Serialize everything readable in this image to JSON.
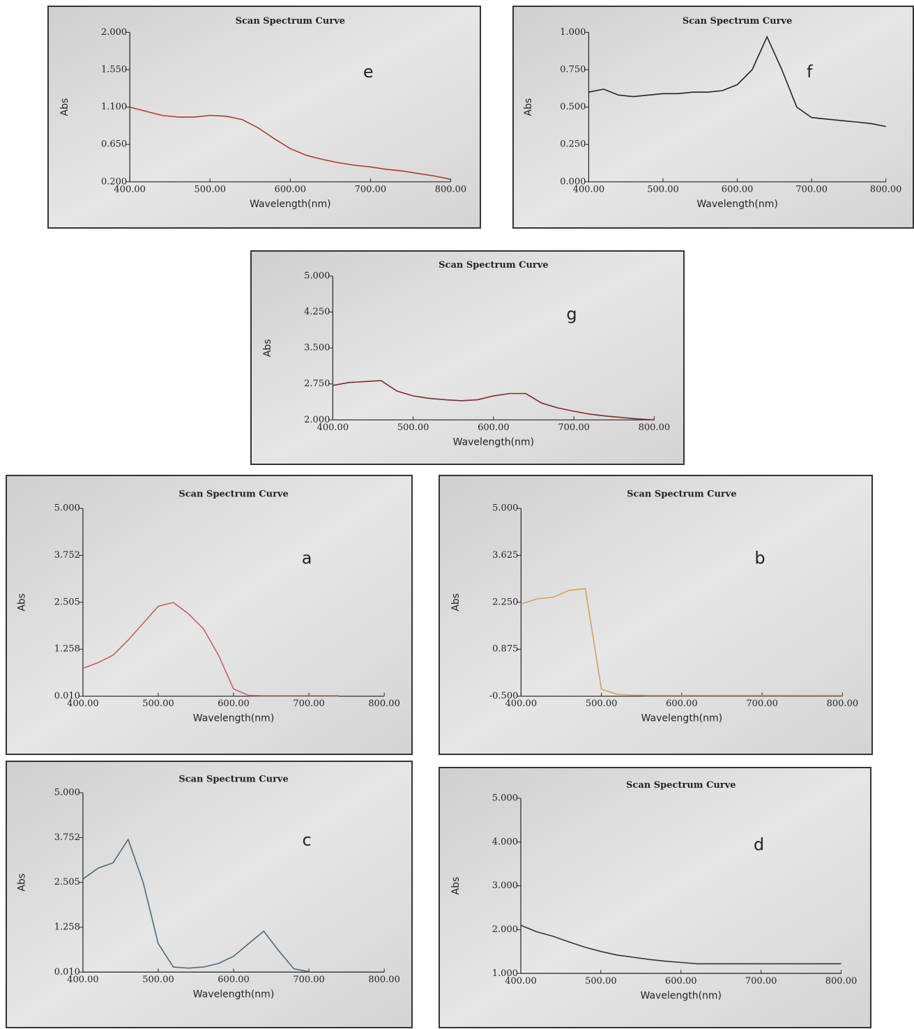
{
  "chart_data": [
    {
      "type": "line",
      "title": "Scan Spectrum Curve",
      "label": "e",
      "xlabel": "Wavelength(nm)",
      "ylabel": "Abs",
      "color": "#b03a2e",
      "x": [
        400,
        420,
        440,
        460,
        480,
        500,
        520,
        540,
        560,
        580,
        600,
        620,
        640,
        660,
        680,
        700,
        720,
        740,
        760,
        780,
        800
      ],
      "values": [
        1.1,
        1.05,
        1.0,
        0.98,
        0.98,
        1.0,
        0.99,
        0.95,
        0.85,
        0.72,
        0.6,
        0.52,
        0.47,
        0.43,
        0.4,
        0.38,
        0.35,
        0.33,
        0.3,
        0.27,
        0.23
      ],
      "xlim": [
        400,
        800
      ],
      "ylim": [
        0.2,
        2.0
      ],
      "xticks": [
        {
          "value": 400,
          "label": "400.00"
        },
        {
          "value": 500,
          "label": "500.00"
        },
        {
          "value": 600,
          "label": "600.00"
        },
        {
          "value": 700,
          "label": "700.00"
        },
        {
          "value": 800,
          "label": "800.00"
        }
      ],
      "yticks": [
        {
          "value": 0.2,
          "label": "0.200"
        },
        {
          "value": 0.65,
          "label": "0.650"
        },
        {
          "value": 1.1,
          "label": "1.100"
        },
        {
          "value": 1.55,
          "label": "1.550"
        },
        {
          "value": 2,
          "label": "2.000"
        }
      ]
    },
    {
      "type": "line",
      "title": "Scan Spectrum Curve",
      "label": "f",
      "xlabel": "Wavelength(nm)",
      "ylabel": "Abs",
      "color": "#222222",
      "x": [
        400,
        420,
        440,
        460,
        480,
        500,
        520,
        540,
        560,
        580,
        600,
        620,
        640,
        660,
        680,
        700,
        720,
        740,
        760,
        780,
        800
      ],
      "values": [
        0.6,
        0.62,
        0.58,
        0.57,
        0.58,
        0.59,
        0.59,
        0.6,
        0.6,
        0.61,
        0.65,
        0.75,
        0.97,
        0.75,
        0.5,
        0.43,
        0.42,
        0.41,
        0.4,
        0.39,
        0.37
      ],
      "xlim": [
        400,
        800
      ],
      "ylim": [
        0,
        1
      ],
      "xticks": [
        {
          "value": 400,
          "label": "400.00"
        },
        {
          "value": 500,
          "label": "500.00"
        },
        {
          "value": 600,
          "label": "600.00"
        },
        {
          "value": 700,
          "label": "700.00"
        },
        {
          "value": 800,
          "label": "800.00"
        }
      ],
      "yticks": [
        {
          "value": 0,
          "label": "0.000"
        },
        {
          "value": 0.25,
          "label": "0.250"
        },
        {
          "value": 0.5,
          "label": "0.500"
        },
        {
          "value": 0.75,
          "label": "0.750"
        },
        {
          "value": 1,
          "label": "1.000"
        }
      ]
    },
    {
      "type": "line",
      "title": "Scan Spectrum Curve",
      "label": "g",
      "xlabel": "Wavelength(nm)",
      "ylabel": "Abs",
      "color": "#7a2a2a",
      "x": [
        400,
        420,
        440,
        460,
        480,
        500,
        520,
        540,
        560,
        580,
        600,
        620,
        640,
        660,
        680,
        700,
        720,
        740,
        760,
        780,
        800
      ],
      "values": [
        2.72,
        2.78,
        2.8,
        2.82,
        2.6,
        2.5,
        2.45,
        2.42,
        2.4,
        2.42,
        2.5,
        2.55,
        2.55,
        2.35,
        2.25,
        2.18,
        2.12,
        2.08,
        2.05,
        2.02,
        2.0
      ],
      "xlim": [
        400,
        800
      ],
      "ylim": [
        2,
        5
      ],
      "xticks": [
        {
          "value": 400,
          "label": "400.00"
        },
        {
          "value": 500,
          "label": "500.00"
        },
        {
          "value": 600,
          "label": "600.00"
        },
        {
          "value": 700,
          "label": "700.00"
        },
        {
          "value": 800,
          "label": "800.00"
        }
      ],
      "yticks": [
        {
          "value": 2,
          "label": "2.000"
        },
        {
          "value": 2.75,
          "label": "2.750"
        },
        {
          "value": 3.5,
          "label": "3.500"
        },
        {
          "value": 4.25,
          "label": "4.250"
        },
        {
          "value": 5,
          "label": "5.000"
        }
      ]
    },
    {
      "type": "line",
      "title": "Scan Spectrum Curve",
      "label": "a",
      "xlabel": "Wavelength(nm)",
      "ylabel": "Abs",
      "color": "#c46060",
      "x": [
        400,
        420,
        440,
        460,
        480,
        500,
        520,
        540,
        560,
        580,
        600,
        620,
        640,
        660,
        680,
        700,
        720,
        740,
        760,
        780,
        800
      ],
      "values": [
        0.75,
        0.9,
        1.1,
        1.5,
        1.95,
        2.4,
        2.5,
        2.2,
        1.8,
        1.1,
        0.2,
        0.03,
        0.02,
        0.02,
        0.02,
        0.02,
        0.02,
        0.02,
        null,
        null,
        null
      ],
      "xlim": [
        400,
        800
      ],
      "ylim": [
        0.01,
        5
      ],
      "xticks": [
        {
          "value": 400,
          "label": "400.00"
        },
        {
          "value": 500,
          "label": "500.00"
        },
        {
          "value": 600,
          "label": "600.00"
        },
        {
          "value": 700,
          "label": "700.00"
        },
        {
          "value": 800,
          "label": "800.00"
        }
      ],
      "yticks": [
        {
          "value": 0.01,
          "label": "0.010"
        },
        {
          "value": 1.258,
          "label": "1.258"
        },
        {
          "value": 2.505,
          "label": "2.505"
        },
        {
          "value": 3.752,
          "label": "3.752"
        },
        {
          "value": 5,
          "label": "5.000"
        }
      ]
    },
    {
      "type": "line",
      "title": "Scan Spectrum Curve",
      "label": "b",
      "xlabel": "Wavelength(nm)",
      "ylabel": "Abs",
      "color": "#d4a060",
      "x": [
        400,
        420,
        440,
        460,
        480,
        500,
        520,
        540,
        560,
        580,
        600,
        620,
        640,
        660,
        680,
        700,
        720,
        740,
        760,
        780,
        800
      ],
      "values": [
        2.2,
        2.35,
        2.4,
        2.6,
        2.65,
        -0.3,
        -0.45,
        -0.47,
        -0.48,
        -0.48,
        -0.48,
        -0.48,
        -0.48,
        -0.48,
        -0.48,
        -0.48,
        -0.48,
        -0.48,
        -0.48,
        -0.48,
        -0.48
      ],
      "xlim": [
        400,
        800
      ],
      "ylim": [
        -0.5,
        5
      ],
      "xticks": [
        {
          "value": 400,
          "label": "400.00"
        },
        {
          "value": 500,
          "label": "500.00"
        },
        {
          "value": 600,
          "label": "600.00"
        },
        {
          "value": 700,
          "label": "700.00"
        },
        {
          "value": 800,
          "label": "800.00"
        }
      ],
      "yticks": [
        {
          "value": -0.5,
          "label": "-0.500"
        },
        {
          "value": 0.875,
          "label": "0.875"
        },
        {
          "value": 2.25,
          "label": "2.250"
        },
        {
          "value": 3.625,
          "label": "3.625"
        },
        {
          "value": 5,
          "label": "5.000"
        }
      ]
    },
    {
      "type": "line",
      "title": "Scan Spectrum Curve",
      "label": "c",
      "xlabel": "Wavelength(nm)",
      "ylabel": "Abs",
      "color": "#4a6a7a",
      "x": [
        400,
        420,
        440,
        460,
        480,
        500,
        520,
        540,
        560,
        580,
        600,
        620,
        640,
        660,
        680,
        700,
        720,
        740,
        760,
        780,
        800
      ],
      "values": [
        2.6,
        2.9,
        3.05,
        3.7,
        2.5,
        0.8,
        0.15,
        0.12,
        0.15,
        0.25,
        0.45,
        0.8,
        1.15,
        0.6,
        0.1,
        0.02,
        null,
        null,
        null,
        null,
        null
      ],
      "xlim": [
        400,
        800
      ],
      "ylim": [
        0.01,
        5
      ],
      "xticks": [
        {
          "value": 400,
          "label": "400.00"
        },
        {
          "value": 500,
          "label": "500.00"
        },
        {
          "value": 600,
          "label": "600.00"
        },
        {
          "value": 700,
          "label": "700.00"
        },
        {
          "value": 800,
          "label": "800.00"
        }
      ],
      "yticks": [
        {
          "value": 0.01,
          "label": "0.010"
        },
        {
          "value": 1.258,
          "label": "1.258"
        },
        {
          "value": 2.505,
          "label": "2.505"
        },
        {
          "value": 3.752,
          "label": "3.752"
        },
        {
          "value": 5,
          "label": "5.000"
        }
      ]
    },
    {
      "type": "line",
      "title": "Scan Spectrum Curve",
      "label": "d",
      "xlabel": "Wavelength(nm)",
      "ylabel": "Abs",
      "color": "#333333",
      "x": [
        400,
        420,
        440,
        460,
        480,
        500,
        520,
        540,
        560,
        580,
        600,
        620,
        640,
        660,
        680,
        700,
        720,
        740,
        760,
        780,
        800
      ],
      "values": [
        2.1,
        1.95,
        1.85,
        1.72,
        1.6,
        1.5,
        1.42,
        1.37,
        1.32,
        1.28,
        1.25,
        1.22,
        1.22,
        1.22,
        1.22,
        1.22,
        1.22,
        1.22,
        1.22,
        1.22,
        1.22
      ],
      "xlim": [
        400,
        800
      ],
      "ylim": [
        1,
        5
      ],
      "xticks": [
        {
          "value": 400,
          "label": "400.00"
        },
        {
          "value": 500,
          "label": "500.00"
        },
        {
          "value": 600,
          "label": "600.00"
        },
        {
          "value": 700,
          "label": "700.00"
        },
        {
          "value": 800,
          "label": "800.00"
        }
      ],
      "yticks": [
        {
          "value": 1,
          "label": "1.000"
        },
        {
          "value": 2,
          "label": "2.000"
        },
        {
          "value": 3,
          "label": "3.000"
        },
        {
          "value": 4,
          "label": "4.000"
        },
        {
          "value": 5,
          "label": "5.000"
        }
      ]
    }
  ]
}
